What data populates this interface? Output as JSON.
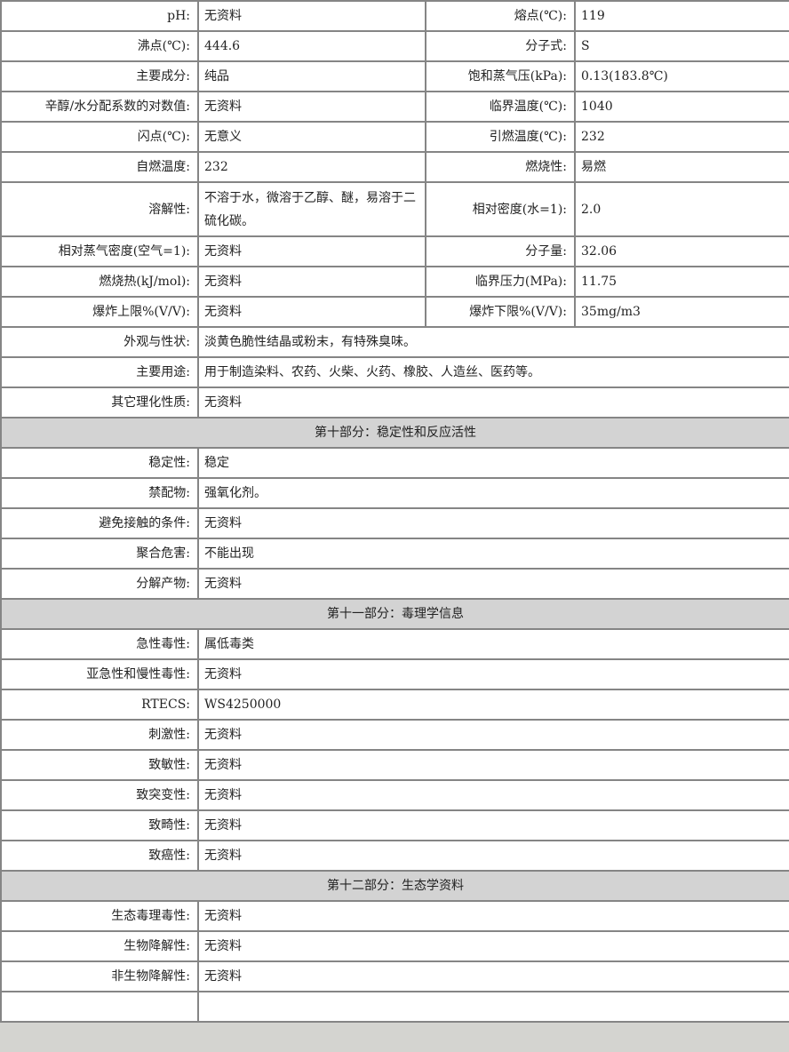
{
  "properties": [
    {
      "l1": "pH:",
      "v1": "无资料",
      "l2": "熔点(℃):",
      "v2": "119"
    },
    {
      "l1": "沸点(℃):",
      "v1": "444.6",
      "l2": "分子式:",
      "v2": "S"
    },
    {
      "l1": "主要成分:",
      "v1": "纯品",
      "l2": "饱和蒸气压(kPa):",
      "v2": "0.13(183.8℃)"
    },
    {
      "l1": "辛醇/水分配系数的对数值:",
      "v1": "无资料",
      "l2": "临界温度(℃):",
      "v2": "1040"
    },
    {
      "l1": "闪点(℃):",
      "v1": "无意义",
      "l2": "引燃温度(℃):",
      "v2": "232"
    },
    {
      "l1": "自燃温度:",
      "v1": "232",
      "l2": "燃烧性:",
      "v2": "易燃"
    },
    {
      "l1": "溶解性:",
      "v1": "不溶于水，微溶于乙醇、醚，易溶于二硫化碳。",
      "l2": "相对密度(水=1):",
      "v2": "2.0",
      "tall": true
    },
    {
      "l1": "相对蒸气密度(空气=1):",
      "v1": "无资料",
      "l2": "分子量:",
      "v2": "32.06"
    },
    {
      "l1": "燃烧热(kJ/mol):",
      "v1": "无资料",
      "l2": "临界压力(MPa):",
      "v2": "11.75"
    },
    {
      "l1": "爆炸上限%(V/V):",
      "v1": "无资料",
      "l2": "爆炸下限%(V/V):",
      "v2": "35mg/m3"
    }
  ],
  "rows": [
    {
      "l": "外观与性状:",
      "v": "淡黄色脆性结晶或粉末，有特殊臭味。"
    },
    {
      "l": "主要用途:",
      "v": "用于制造染料、农药、火柴、火药、橡胶、人造丝、医药等。"
    },
    {
      "l": "其它理化性质:",
      "v": "无资料"
    },
    {
      "section": "第十部分：稳定性和反应活性"
    },
    {
      "l": "稳定性:",
      "v": "稳定"
    },
    {
      "l": "禁配物:",
      "v": "强氧化剂。"
    },
    {
      "l": "避免接触的条件:",
      "v": "无资料"
    },
    {
      "l": "聚合危害:",
      "v": "不能出现"
    },
    {
      "l": "分解产物:",
      "v": "无资料"
    },
    {
      "section": "第十一部分：毒理学信息"
    },
    {
      "l": "急性毒性:",
      "v": "属低毒类"
    },
    {
      "l": "亚急性和慢性毒性:",
      "v": "无资料"
    },
    {
      "l": "RTECS:",
      "v": "WS4250000"
    },
    {
      "l": "刺激性:",
      "v": "无资料"
    },
    {
      "l": "致敏性:",
      "v": "无资料"
    },
    {
      "l": "致突变性:",
      "v": "无资料"
    },
    {
      "l": "致畸性:",
      "v": "无资料"
    },
    {
      "l": "致癌性:",
      "v": "无资料"
    },
    {
      "section": "第十二部分：生态学资料"
    },
    {
      "l": "生态毒理毒性:",
      "v": "无资料"
    },
    {
      "l": "生物降解性:",
      "v": "无资料"
    },
    {
      "l": "非生物降解性:",
      "v": "无资料"
    },
    {
      "l": "",
      "v": ""
    }
  ]
}
